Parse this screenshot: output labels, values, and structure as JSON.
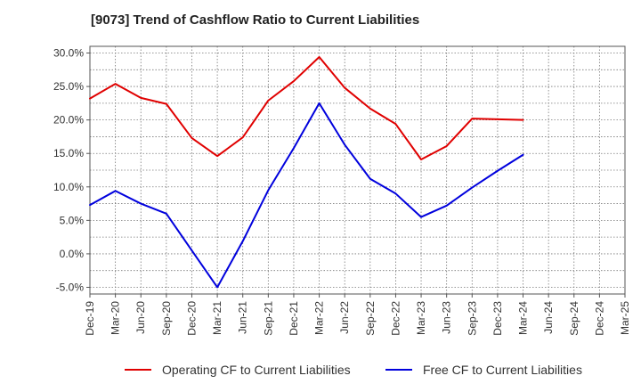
{
  "chart_data": {
    "type": "line",
    "title": "[9073]  Trend of Cashflow Ratio to Current Liabilities",
    "xlabel": "",
    "ylabel": "",
    "categories": [
      "Dec-19",
      "Mar-20",
      "Jun-20",
      "Sep-20",
      "Dec-20",
      "Mar-21",
      "Jun-21",
      "Sep-21",
      "Dec-21",
      "Mar-22",
      "Jun-22",
      "Sep-22",
      "Dec-22",
      "Mar-23",
      "Jun-23",
      "Sep-23",
      "Dec-23",
      "Mar-24",
      "Jun-24",
      "Sep-24",
      "Dec-24",
      "Mar-25"
    ],
    "ylim": [
      -6,
      31
    ],
    "yticks": [
      -5,
      0,
      5,
      10,
      15,
      20,
      25,
      30
    ],
    "ytick_labels": [
      "-5.0%",
      "0.0%",
      "5.0%",
      "10.0%",
      "15.0%",
      "20.0%",
      "25.0%",
      "30.0%"
    ],
    "grid": true,
    "legend_position": "bottom",
    "series": [
      {
        "name": "Operating CF to Current Liabilities",
        "color": "#e00000",
        "values": [
          23.2,
          25.4,
          23.3,
          22.4,
          17.3,
          14.6,
          17.4,
          22.9,
          25.8,
          29.4,
          24.8,
          21.7,
          19.4,
          14.1,
          16.1,
          20.2,
          20.1,
          20.0,
          null,
          null,
          null,
          null
        ]
      },
      {
        "name": "Free CF to Current Liabilities",
        "color": "#0000dd",
        "values": [
          7.3,
          9.4,
          7.5,
          6.0,
          0.5,
          -5.0,
          1.9,
          9.5,
          15.8,
          22.5,
          16.3,
          11.2,
          9.0,
          5.5,
          7.2,
          9.9,
          12.4,
          14.8,
          null,
          null,
          null,
          null
        ]
      }
    ]
  }
}
